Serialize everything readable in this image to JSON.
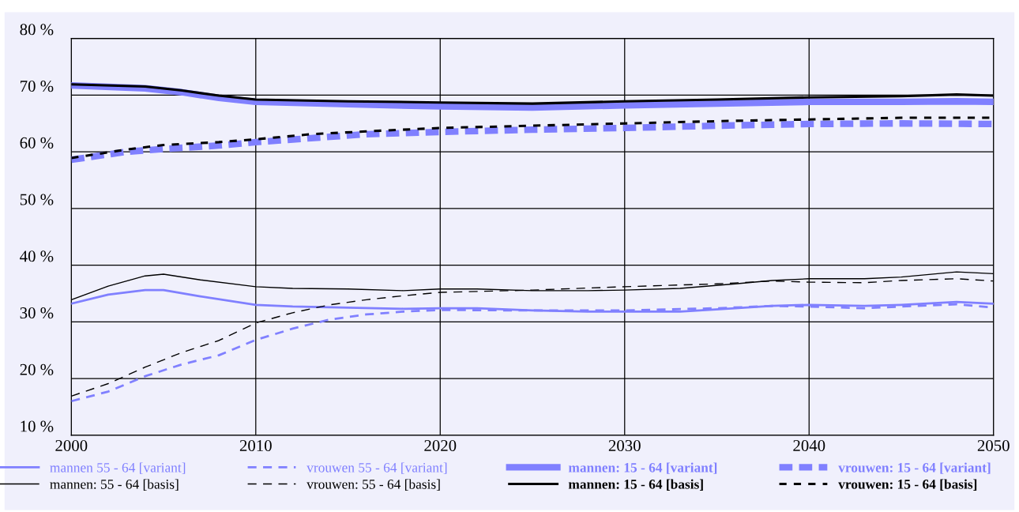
{
  "chart_data": {
    "type": "line",
    "xlim": [
      2000,
      2050
    ],
    "xticks": [
      2000,
      2010,
      2020,
      2030,
      2040,
      2050
    ],
    "ylim": [
      10,
      80
    ],
    "yticks": [
      {
        "value": 10,
        "label": "10 %"
      },
      {
        "value": 20,
        "label": "20 %"
      },
      {
        "value": 30,
        "label": "30 %"
      },
      {
        "value": 40,
        "label": "40 %"
      },
      {
        "value": 50,
        "label": "50 %"
      },
      {
        "value": 60,
        "label": "60 %"
      },
      {
        "value": 70,
        "label": "70 %"
      },
      {
        "value": 80,
        "label": "80 %"
      }
    ],
    "grid": true,
    "legend": "bottom",
    "marker": "none",
    "series": [
      {
        "name": "mannen 55 - 64 [variant]",
        "color": "#8080ff",
        "line_style": "solid",
        "x": [
          2000,
          2002,
          2004,
          2005,
          2007,
          2010,
          2012,
          2015,
          2018,
          2020,
          2022,
          2025,
          2028,
          2030,
          2033,
          2036,
          2038,
          2040,
          2043,
          2045,
          2048,
          2050
        ],
        "values": [
          33.2,
          34.8,
          35.6,
          35.6,
          34.5,
          33.0,
          32.7,
          32.5,
          32.3,
          32.4,
          32.4,
          32.0,
          31.8,
          31.8,
          31.8,
          32.4,
          32.8,
          33.0,
          32.8,
          33.0,
          33.5,
          33.2
        ]
      },
      {
        "name": "mannen: 55 - 64 [basis]",
        "color": "#000000",
        "line_style": "solid",
        "x": [
          2000,
          2002,
          2004,
          2005,
          2007,
          2010,
          2012,
          2015,
          2018,
          2020,
          2022,
          2025,
          2028,
          2030,
          2033,
          2036,
          2038,
          2040,
          2043,
          2045,
          2048,
          2050
        ],
        "values": [
          33.9,
          36.3,
          38.1,
          38.4,
          37.4,
          36.2,
          35.9,
          35.8,
          35.5,
          35.8,
          35.8,
          35.5,
          35.5,
          35.6,
          35.9,
          36.7,
          37.3,
          37.6,
          37.6,
          37.9,
          38.8,
          38.5
        ]
      },
      {
        "name": "vrouwen 55 - 64 [variant]",
        "color": "#8080ff",
        "line_style": "dashed",
        "x": [
          2000,
          2002,
          2004,
          2006,
          2008,
          2010,
          2012,
          2014,
          2016,
          2018,
          2020,
          2025,
          2030,
          2035,
          2038,
          2040,
          2043,
          2045,
          2048,
          2050
        ],
        "values": [
          16.0,
          17.7,
          20.4,
          22.5,
          24.1,
          26.8,
          28.8,
          30.4,
          31.3,
          31.8,
          32.1,
          32.0,
          32.0,
          32.4,
          32.8,
          32.7,
          32.4,
          32.7,
          33.1,
          32.5
        ]
      },
      {
        "name": "vrouwen: 55 - 64 [basis]",
        "color": "#000000",
        "line_style": "dashed",
        "x": [
          2000,
          2002,
          2004,
          2006,
          2008,
          2010,
          2012,
          2014,
          2016,
          2018,
          2020,
          2025,
          2030,
          2035,
          2038,
          2040,
          2043,
          2045,
          2048,
          2050
        ],
        "values": [
          16.9,
          19.1,
          22.0,
          24.6,
          26.7,
          29.8,
          31.6,
          33.0,
          33.9,
          34.6,
          35.2,
          35.6,
          36.2,
          36.7,
          37.2,
          37.0,
          36.9,
          37.3,
          37.6,
          37.2
        ]
      },
      {
        "name": "mannen: 15 - 64 [variant]",
        "color": "#8080ff",
        "line_style": "solid",
        "x": [
          2000,
          2004,
          2006,
          2008,
          2010,
          2015,
          2020,
          2025,
          2030,
          2035,
          2040,
          2045,
          2048,
          2050
        ],
        "values": [
          71.7,
          71.2,
          70.5,
          69.5,
          68.8,
          68.4,
          68.0,
          67.8,
          68.2,
          68.5,
          68.8,
          68.8,
          68.9,
          68.8
        ]
      },
      {
        "name": "mannen: 15 - 64 [basis]",
        "color": "#000000",
        "line_style": "solid",
        "x": [
          2000,
          2004,
          2006,
          2008,
          2010,
          2015,
          2020,
          2025,
          2030,
          2035,
          2040,
          2045,
          2048,
          2050
        ],
        "values": [
          71.9,
          71.5,
          70.8,
          69.9,
          69.2,
          68.9,
          68.7,
          68.5,
          68.9,
          69.2,
          69.6,
          69.8,
          70.1,
          69.9
        ]
      },
      {
        "name": "vrouwen: 15 - 64 [variant]",
        "color": "#8080ff",
        "line_style": "dotted",
        "x": [
          2000,
          2003,
          2005,
          2008,
          2010,
          2013,
          2016,
          2020,
          2025,
          2030,
          2035,
          2040,
          2045,
          2050
        ],
        "values": [
          58.6,
          60.0,
          60.5,
          61.1,
          61.7,
          62.4,
          63.1,
          63.5,
          63.9,
          64.2,
          64.6,
          64.9,
          65.0,
          64.9
        ]
      },
      {
        "name": "vrouwen: 15 - 64 [basis]",
        "color": "#000000",
        "line_style": "dashed",
        "x": [
          2000,
          2003,
          2005,
          2008,
          2010,
          2013,
          2016,
          2020,
          2025,
          2030,
          2035,
          2040,
          2045,
          2050
        ],
        "values": [
          58.9,
          60.4,
          61.2,
          61.7,
          62.2,
          63.1,
          63.6,
          64.2,
          64.6,
          65.0,
          65.4,
          65.7,
          66.0,
          66.0
        ]
      }
    ]
  }
}
